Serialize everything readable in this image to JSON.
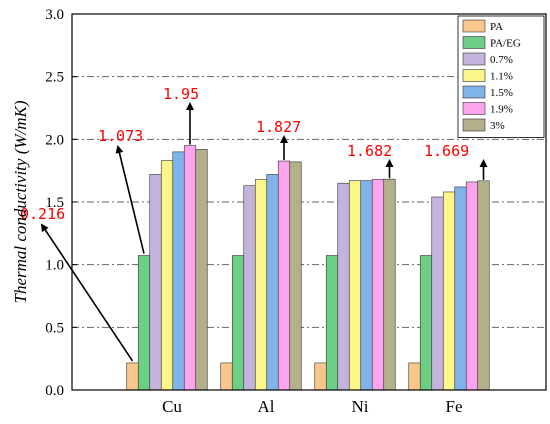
{
  "chart_data": {
    "type": "bar",
    "ylabel": "Thermal conductivity (W/mK)",
    "ylim": [
      0,
      3.0
    ],
    "yticks": [
      "0.0",
      "0.5",
      "1.0",
      "1.5",
      "2.0",
      "2.5",
      "3.0"
    ],
    "grid": "horizontal dash-dot",
    "legend_position": "top-right",
    "categories": [
      "Cu",
      "Al",
      "Ni",
      "Fe"
    ],
    "series": [
      {
        "name": "PA",
        "color": "#f9c68c",
        "values": [
          0.216,
          0.216,
          0.216,
          0.216
        ]
      },
      {
        "name": "PA/EG",
        "color": "#6dcf86",
        "values": [
          1.073,
          1.073,
          1.073,
          1.073
        ]
      },
      {
        "name": "0.7%",
        "color": "#c4b3dc",
        "values": [
          1.72,
          1.63,
          1.65,
          1.54
        ]
      },
      {
        "name": "1.1%",
        "color": "#fbf68a",
        "values": [
          1.83,
          1.68,
          1.67,
          1.58
        ]
      },
      {
        "name": "1.5%",
        "color": "#7fb3ea",
        "values": [
          1.9,
          1.72,
          1.67,
          1.62
        ]
      },
      {
        "name": "1.9%",
        "color": "#fda4ee",
        "values": [
          1.95,
          1.827,
          1.68,
          1.66
        ]
      },
      {
        "name": "3%",
        "color": "#b3b08a",
        "values": [
          1.92,
          1.82,
          1.682,
          1.669
        ]
      }
    ],
    "annotations": [
      {
        "text": "0.216",
        "category": 0,
        "series": 0
      },
      {
        "text": "1.073",
        "category": 0,
        "series": 1
      },
      {
        "text": "1.95",
        "category": 0,
        "series": 5
      },
      {
        "text": "1.827",
        "category": 1,
        "series": 5
      },
      {
        "text": "1.682",
        "category": 2,
        "series": 6
      },
      {
        "text": "1.669",
        "category": 3,
        "series": 6
      }
    ]
  }
}
